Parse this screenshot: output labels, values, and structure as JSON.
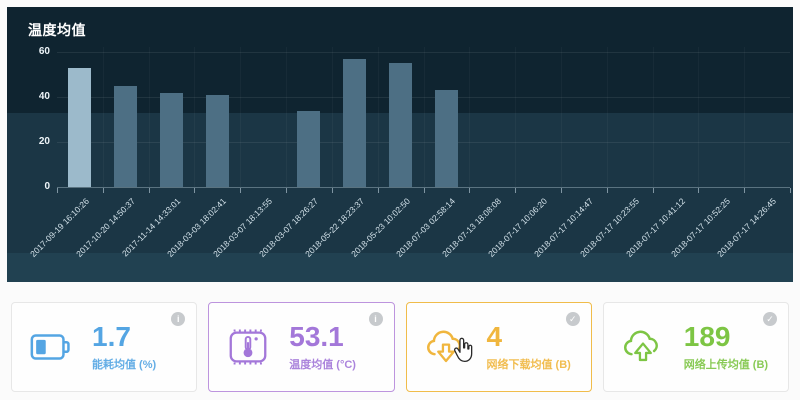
{
  "chart_data": {
    "type": "bar",
    "title": "温度均值",
    "categories": [
      "2017-09-19 16:10:26",
      "2017-10-20 14:50:37",
      "2017-11-14 14:33:01",
      "2018-03-03 18:02:41",
      "2018-03-07 18:13:55",
      "2018-03-07 18:26:27",
      "2018-05-22 18:23:37",
      "2018-05-23 10:02:50",
      "2018-07-03 02:58:14",
      "2018-07-13 18:08:08",
      "2018-07-17 10:06:20",
      "2018-07-17 10:14:47",
      "2018-07-17 10:23:55",
      "2018-07-17 10:41:12",
      "2018-07-17 10:52:25",
      "2018-07-17 14:26:45"
    ],
    "values": [
      53,
      45,
      42,
      41,
      0,
      34,
      57,
      55,
      43,
      0,
      0,
      0,
      0,
      0,
      0,
      0
    ],
    "highlight_index": 0,
    "xlabel": "",
    "ylabel": "",
    "ylim": [
      0,
      60
    ],
    "yticks": [
      0,
      20,
      40,
      60
    ],
    "grid": true,
    "legend": "none",
    "bar_color": "#4d6f84",
    "highlight_color": "#9cbacb"
  },
  "cards": [
    {
      "value": "1.7",
      "label": "能耗均值 (%)",
      "color": "#54a5e3",
      "border": "#e7e7e7",
      "corner": "i",
      "icon": "battery-icon"
    },
    {
      "value": "53.1",
      "label": "温度均值 (°C)",
      "color": "#a377d9",
      "border": "#bd94de",
      "corner": "i",
      "icon": "thermometer-stamp-icon"
    },
    {
      "value": "4",
      "label": "网络下载均值 (B)",
      "color": "#f0b63e",
      "border": "#f0bc4a",
      "corner": "✓",
      "icon": "cloud-download-icon"
    },
    {
      "value": "189",
      "label": "网络上传均值 (B)",
      "color": "#7dc544",
      "border": "#e7e7e7",
      "corner": "✓",
      "icon": "cloud-upload-icon"
    }
  ]
}
